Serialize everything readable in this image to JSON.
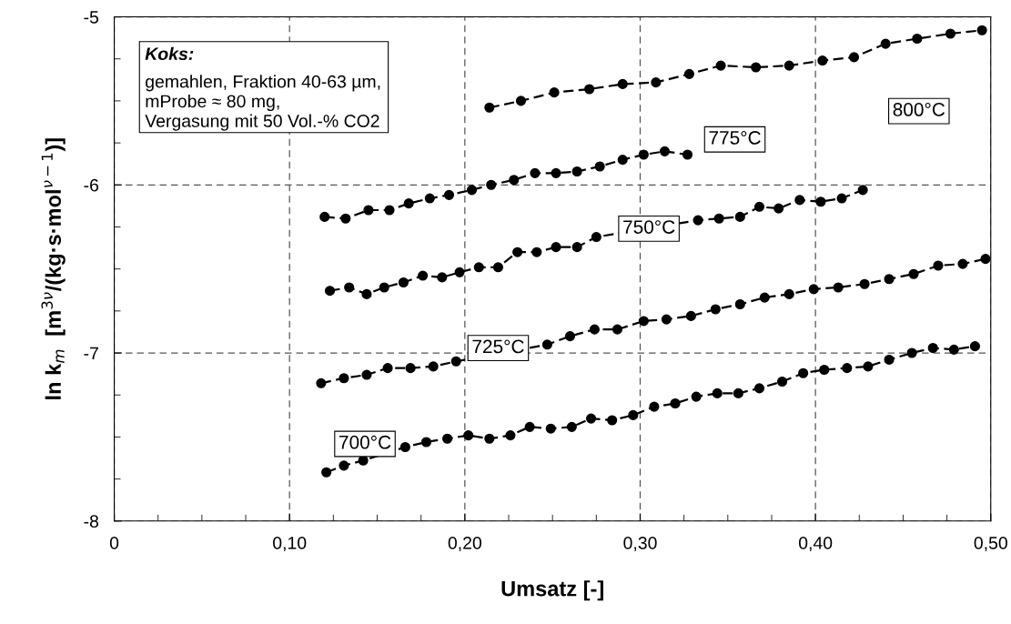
{
  "chart_data": {
    "type": "line",
    "xlabel": "Umsatz [-]",
    "ylabel": "ln k$_{m}$  [m$^{3ν}$/(kg·s·mol$^{ν−1}$)]",
    "xlim": [
      0,
      0.5
    ],
    "ylim": [
      -8,
      -5
    ],
    "xticks": [
      0,
      {
        "value": 0.025,
        "label": null
      },
      {
        "value": 0.05,
        "label": null
      },
      {
        "value": 0.075,
        "label": null
      },
      {
        "value": 0.1,
        "label": "0,10"
      },
      {
        "value": 0.125,
        "label": null
      },
      {
        "value": 0.15,
        "label": null
      },
      {
        "value": 0.175,
        "label": null
      },
      {
        "value": 0.2,
        "label": "0,20"
      },
      {
        "value": 0.225,
        "label": null
      },
      {
        "value": 0.25,
        "label": null
      },
      {
        "value": 0.275,
        "label": null
      },
      {
        "value": 0.3,
        "label": "0,30"
      },
      {
        "value": 0.325,
        "label": null
      },
      {
        "value": 0.35,
        "label": null
      },
      {
        "value": 0.375,
        "label": null
      },
      {
        "value": 0.4,
        "label": "0,40"
      },
      {
        "value": 0.425,
        "label": null
      },
      {
        "value": 0.45,
        "label": null
      },
      {
        "value": 0.475,
        "label": null
      },
      {
        "value": 0.5,
        "label": "0,50"
      }
    ],
    "yticks": [
      -8,
      {
        "value": -7.75,
        "label": null
      },
      {
        "value": -7.5,
        "label": null
      },
      {
        "value": -7.25,
        "label": null
      },
      -7,
      {
        "value": -6.75,
        "label": null
      },
      {
        "value": -6.5,
        "label": null
      },
      {
        "value": -6.25,
        "label": null
      },
      -6,
      {
        "value": -5.75,
        "label": null
      },
      {
        "value": -5.5,
        "label": null
      },
      {
        "value": -5.25,
        "label": null
      },
      -5
    ],
    "grid": true,
    "marker": "circle",
    "line_style": "dashed",
    "series": [
      {
        "name": "700°C",
        "color": "#000000",
        "x": [
          0.121,
          0.131,
          0.142,
          0.166,
          0.178,
          0.19,
          0.202,
          0.214,
          0.226,
          0.237,
          0.249,
          0.261,
          0.272,
          0.284,
          0.296,
          0.308,
          0.32,
          0.332,
          0.344,
          0.356,
          0.368,
          0.381,
          0.393,
          0.405,
          0.418,
          0.43,
          0.442,
          0.455,
          0.467,
          0.479,
          0.491
        ],
        "values": [
          -7.71,
          -7.67,
          -7.64,
          -7.56,
          -7.53,
          -7.51,
          -7.49,
          -7.51,
          -7.49,
          -7.44,
          -7.45,
          -7.44,
          -7.39,
          -7.4,
          -7.37,
          -7.32,
          -7.3,
          -7.26,
          -7.24,
          -7.24,
          -7.21,
          -7.17,
          -7.12,
          -7.1,
          -7.09,
          -7.08,
          -7.04,
          -7.0,
          -6.97,
          -6.98,
          -6.96
        ]
      },
      {
        "name": "725°C",
        "color": "#000000",
        "x": [
          0.118,
          0.131,
          0.144,
          0.156,
          0.169,
          0.182,
          0.195,
          0.247,
          0.26,
          0.274,
          0.287,
          0.302,
          0.315,
          0.329,
          0.343,
          0.357,
          0.371,
          0.385,
          0.399,
          0.413,
          0.428,
          0.442,
          0.456,
          0.47,
          0.484,
          0.497
        ],
        "values": [
          -7.18,
          -7.15,
          -7.13,
          -7.09,
          -7.09,
          -7.08,
          -7.05,
          -6.95,
          -6.9,
          -6.86,
          -6.86,
          -6.81,
          -6.8,
          -6.78,
          -6.74,
          -6.71,
          -6.67,
          -6.65,
          -6.62,
          -6.61,
          -6.59,
          -6.56,
          -6.53,
          -6.48,
          -6.47,
          -6.44
        ]
      },
      {
        "name": "750°C",
        "color": "#000000",
        "x": [
          0.123,
          0.134,
          0.144,
          0.154,
          0.165,
          0.176,
          0.187,
          0.197,
          0.208,
          0.219,
          0.23,
          0.241,
          0.252,
          0.264,
          0.275,
          0.333,
          0.345,
          0.357,
          0.368,
          0.379,
          0.391,
          0.403,
          0.415,
          0.427
        ],
        "values": [
          -6.63,
          -6.61,
          -6.65,
          -6.61,
          -6.58,
          -6.54,
          -6.55,
          -6.52,
          -6.49,
          -6.49,
          -6.4,
          -6.4,
          -6.37,
          -6.37,
          -6.31,
          -6.21,
          -6.2,
          -6.19,
          -6.13,
          -6.14,
          -6.09,
          -6.1,
          -6.08,
          -6.03
        ]
      },
      {
        "name": "775°C",
        "color": "#000000",
        "x": [
          0.12,
          0.132,
          0.145,
          0.157,
          0.168,
          0.18,
          0.191,
          0.204,
          0.215,
          0.228,
          0.24,
          0.252,
          0.264,
          0.277,
          0.29,
          0.302,
          0.314,
          0.327
        ],
        "values": [
          -6.19,
          -6.2,
          -6.15,
          -6.15,
          -6.11,
          -6.08,
          -6.06,
          -6.03,
          -6.0,
          -5.97,
          -5.93,
          -5.93,
          -5.92,
          -5.89,
          -5.85,
          -5.82,
          -5.8,
          -5.82
        ]
      },
      {
        "name": "800°C",
        "color": "#000000",
        "x": [
          0.214,
          0.232,
          0.251,
          0.271,
          0.29,
          0.309,
          0.328,
          0.346,
          0.366,
          0.385,
          0.404,
          0.422,
          0.44,
          0.458,
          0.477,
          0.495
        ],
        "values": [
          -5.54,
          -5.5,
          -5.45,
          -5.43,
          -5.4,
          -5.39,
          -5.34,
          -5.29,
          -5.3,
          -5.29,
          -5.26,
          -5.24,
          -5.16,
          -5.13,
          -5.1,
          -5.08
        ]
      }
    ],
    "annotations": [
      "Koks:",
      "gemahlen, Fraktion 40-63 µm,\nmProbe ≈ 80 mg,\nVergasung mit 50 Vol.-% CO2"
    ]
  }
}
